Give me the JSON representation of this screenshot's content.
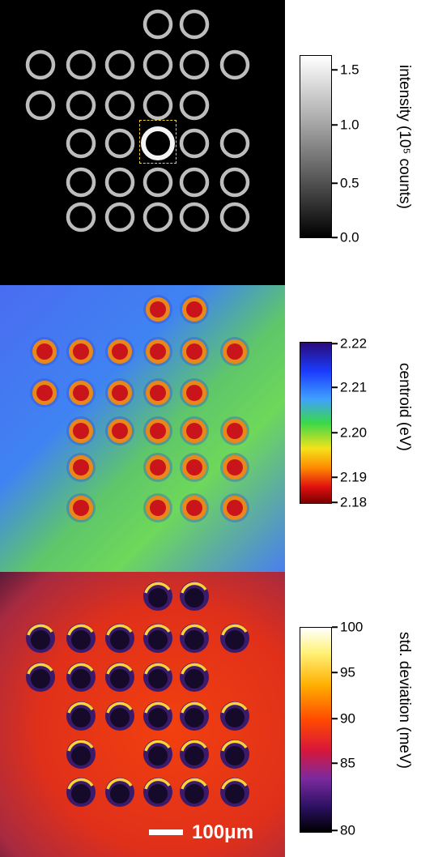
{
  "panels": [
    {
      "name": "intensity",
      "colorbar_label": "intensity (10⁵ counts)",
      "ticks": [
        "1.5",
        "1.0",
        "0.5",
        "0.0"
      ],
      "colormap": [
        "#ffffff",
        "#c8c8c8",
        "#8c8c8c",
        "#404040",
        "#000000"
      ]
    },
    {
      "name": "centroid",
      "colorbar_label": "centroid  (eV)",
      "ticks": [
        "2.22",
        "2.21",
        "2.20",
        "2.19",
        "2.18"
      ],
      "colormap": [
        "#2a0a7a",
        "#1a3cff",
        "#3fa0ff",
        "#39d84a",
        "#f4e21a",
        "#ff8a00",
        "#e01010",
        "#7a0000"
      ]
    },
    {
      "name": "std-deviation",
      "colorbar_label": "std. deviation  (meV)",
      "ticks": [
        "100",
        "95",
        "90",
        "85",
        "80"
      ],
      "colormap": [
        "#ffffff",
        "#fff27a",
        "#ffb000",
        "#ff4a00",
        "#d8163a",
        "#7a2aa0",
        "#2a1060",
        "#000000"
      ]
    }
  ],
  "scale_bar": {
    "label": "100μm"
  }
}
